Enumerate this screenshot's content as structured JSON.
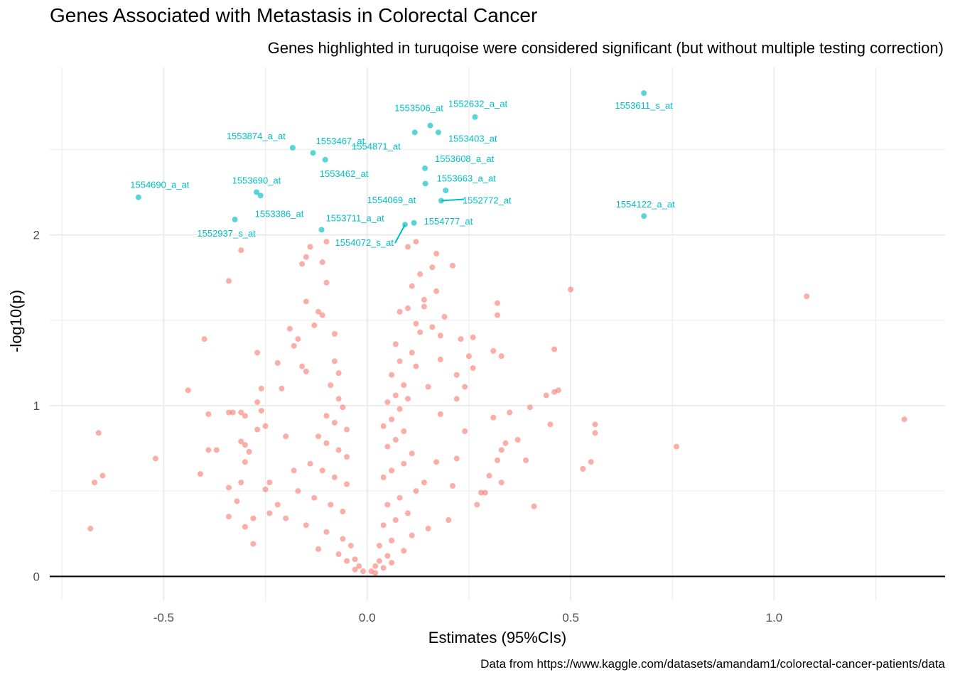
{
  "title": "Genes Associated with Metastasis in Colorectal Cancer",
  "subtitle": "Genes highlighted in turuqoise were considered significant (but without multiple testing correction)",
  "caption": "Data from https://www.kaggle.com/datasets/amandam1/colorectal-cancer-patients/data",
  "colors": {
    "significant": "#00BFC4",
    "nonsignificant": "#F8766D",
    "grid": "#ebebeb",
    "baseline": "#000000"
  },
  "chart_data": {
    "type": "scatter",
    "xlabel": "Estimates (95%CIs)",
    "ylabel": "-log10(p)",
    "xlim": [
      -0.78,
      1.42
    ],
    "ylim": [
      -0.14,
      2.98
    ],
    "x_ticks": [
      -0.5,
      0.0,
      0.5,
      1.0
    ],
    "x_tick_labels": [
      "-0.5",
      "0.0",
      "0.5",
      "1.0"
    ],
    "y_ticks": [
      0,
      1,
      2
    ],
    "y_tick_labels": [
      "0",
      "1",
      "2"
    ],
    "grid": true,
    "baseline_y": 0,
    "significant_points": [
      {
        "label": "1553611_s_at",
        "x": 0.68,
        "y": 2.83
      },
      {
        "label": "1552632_a_at",
        "x": 0.265,
        "y": 2.69
      },
      {
        "label": "1553506_at",
        "x": 0.155,
        "y": 2.64
      },
      {
        "label": "1553403_at",
        "x": 0.175,
        "y": 2.6
      },
      {
        "label": "1554871_at",
        "x": 0.117,
        "y": 2.6
      },
      {
        "label": "1553874_a_at",
        "x": -0.183,
        "y": 2.51
      },
      {
        "label": "1553467_at",
        "x": -0.133,
        "y": 2.48
      },
      {
        "label": "1553462_at",
        "x": -0.103,
        "y": 2.44
      },
      {
        "label": "1553608_a_at",
        "x": 0.142,
        "y": 2.39
      },
      {
        "label": "1553663_a_at",
        "x": 0.143,
        "y": 2.3
      },
      {
        "label": "1554690_a_at",
        "x": -0.562,
        "y": 2.22
      },
      {
        "label": "1553690_at",
        "x": -0.272,
        "y": 2.25
      },
      {
        "label": "1553386_at",
        "x": -0.262,
        "y": 2.23
      },
      {
        "label": "1554069_at",
        "x": 0.193,
        "y": 2.26
      },
      {
        "label": "1552772_at",
        "x": 0.182,
        "y": 2.2
      },
      {
        "label": "1554122_a_at",
        "x": 0.68,
        "y": 2.11
      },
      {
        "label": "1552937_s_at",
        "x": -0.325,
        "y": 2.09
      },
      {
        "label": "1553711_a_at",
        "x": -0.112,
        "y": 2.03
      },
      {
        "label": "1554777_at",
        "x": 0.115,
        "y": 2.07
      },
      {
        "label": "1554072_s_at",
        "x": 0.093,
        "y": 2.06
      }
    ],
    "nonsignificant_points": [
      [
        1.32,
        0.92
      ],
      [
        1.08,
        1.64
      ],
      [
        0.76,
        0.76
      ],
      [
        0.5,
        1.68
      ],
      [
        0.56,
        0.89
      ],
      [
        0.56,
        0.84
      ],
      [
        0.55,
        0.67
      ],
      [
        0.53,
        0.63
      ],
      [
        0.46,
        1.33
      ],
      [
        0.47,
        1.09
      ],
      [
        0.46,
        1.08
      ],
      [
        0.44,
        1.06
      ],
      [
        0.45,
        0.89
      ],
      [
        0.4,
        0.99
      ],
      [
        0.37,
        0.8
      ],
      [
        0.39,
        0.68
      ],
      [
        0.41,
        0.41
      ],
      [
        0.35,
        0.96
      ],
      [
        0.34,
        0.78
      ],
      [
        0.33,
        0.74
      ],
      [
        0.32,
        1.6
      ],
      [
        0.32,
        1.53
      ],
      [
        0.31,
        1.32
      ],
      [
        0.33,
        1.29
      ],
      [
        0.31,
        0.93
      ],
      [
        0.32,
        0.68
      ],
      [
        0.33,
        0.55
      ],
      [
        0.3,
        0.59
      ],
      [
        0.29,
        0.49
      ],
      [
        0.28,
        0.49
      ],
      [
        0.27,
        0.42
      ],
      [
        0.26,
        1.4
      ],
      [
        0.26,
        1.22
      ],
      [
        0.25,
        1.29
      ],
      [
        0.24,
        1.11
      ],
      [
        0.24,
        0.85
      ],
      [
        0.23,
        1.39
      ],
      [
        0.22,
        1.18
      ],
      [
        0.22,
        1.04
      ],
      [
        0.22,
        0.69
      ],
      [
        0.21,
        0.53
      ],
      [
        0.2,
        0.33
      ],
      [
        0.19,
        1.52
      ],
      [
        0.18,
        1.41
      ],
      [
        0.18,
        1.27
      ],
      [
        0.18,
        0.95
      ],
      [
        0.17,
        0.67
      ],
      [
        0.16,
        1.46
      ],
      [
        0.15,
        1.11
      ],
      [
        0.14,
        1.58
      ],
      [
        0.13,
        1.43
      ],
      [
        0.12,
        1.23
      ],
      [
        0.11,
        1.31
      ],
      [
        0.1,
        1.04
      ],
      [
        0.21,
        1.82
      ],
      [
        0.17,
        1.89
      ],
      [
        0.16,
        1.81
      ],
      [
        0.12,
        1.96
      ],
      [
        0.1,
        1.93
      ],
      [
        0.13,
        1.77
      ],
      [
        0.11,
        1.7
      ],
      [
        0.17,
        1.67
      ],
      [
        0.14,
        1.62
      ],
      [
        0.1,
        1.57
      ],
      [
        0.08,
        1.55
      ],
      [
        0.12,
        1.48
      ],
      [
        0.07,
        1.36
      ],
      [
        0.08,
        1.26
      ],
      [
        0.06,
        1.18
      ],
      [
        0.09,
        1.12
      ],
      [
        0.07,
        1.06
      ],
      [
        0.05,
        1.02
      ],
      [
        0.08,
        0.98
      ],
      [
        0.06,
        0.92
      ],
      [
        0.04,
        0.88
      ],
      [
        0.09,
        0.85
      ],
      [
        0.07,
        0.8
      ],
      [
        0.05,
        0.76
      ],
      [
        0.11,
        0.72
      ],
      [
        0.09,
        0.66
      ],
      [
        0.06,
        0.62
      ],
      [
        0.04,
        0.58
      ],
      [
        0.14,
        0.55
      ],
      [
        0.12,
        0.5
      ],
      [
        0.08,
        0.46
      ],
      [
        0.05,
        0.42
      ],
      [
        0.1,
        0.37
      ],
      [
        0.07,
        0.33
      ],
      [
        0.04,
        0.3
      ],
      [
        0.15,
        0.28
      ],
      [
        0.11,
        0.24
      ],
      [
        0.06,
        0.21
      ],
      [
        0.03,
        0.18
      ],
      [
        0.09,
        0.15
      ],
      [
        0.05,
        0.12
      ],
      [
        0.03,
        0.09
      ],
      [
        0.02,
        0.06
      ],
      [
        0.01,
        0.03
      ],
      [
        0.02,
        0.02
      ],
      [
        0.04,
        0.05
      ],
      [
        0.06,
        0.08
      ],
      [
        -0.68,
        0.28
      ],
      [
        -0.66,
        0.84
      ],
      [
        -0.67,
        0.55
      ],
      [
        -0.65,
        0.59
      ],
      [
        -0.52,
        0.69
      ],
      [
        -0.44,
        1.09
      ],
      [
        -0.4,
        1.39
      ],
      [
        -0.39,
        0.95
      ],
      [
        -0.39,
        0.74
      ],
      [
        -0.37,
        0.74
      ],
      [
        -0.41,
        0.6
      ],
      [
        -0.34,
        1.73
      ],
      [
        -0.31,
        1.91
      ],
      [
        -0.34,
        0.96
      ],
      [
        -0.33,
        0.96
      ],
      [
        -0.31,
        0.96
      ],
      [
        -0.3,
        0.94
      ],
      [
        -0.31,
        0.79
      ],
      [
        -0.3,
        0.77
      ],
      [
        -0.29,
        0.73
      ],
      [
        -0.3,
        0.67
      ],
      [
        -0.31,
        0.55
      ],
      [
        -0.34,
        0.52
      ],
      [
        -0.32,
        0.44
      ],
      [
        -0.34,
        0.35
      ],
      [
        -0.28,
        0.34
      ],
      [
        -0.28,
        0.19
      ],
      [
        -0.3,
        0.29
      ],
      [
        -0.27,
        1.31
      ],
      [
        -0.27,
        1.02
      ],
      [
        -0.26,
        1.1
      ],
      [
        -0.26,
        0.97
      ],
      [
        -0.25,
        0.88
      ],
      [
        -0.27,
        0.86
      ],
      [
        -0.25,
        0.51
      ],
      [
        -0.24,
        0.37
      ],
      [
        -0.22,
        1.25
      ],
      [
        -0.21,
        1.1
      ],
      [
        -0.2,
        0.82
      ],
      [
        -0.19,
        1.45
      ],
      [
        -0.18,
        1.35
      ],
      [
        -0.17,
        1.39
      ],
      [
        -0.16,
        1.23
      ],
      [
        -0.15,
        1.2
      ],
      [
        -0.13,
        1.47
      ],
      [
        -0.12,
        1.55
      ],
      [
        -0.11,
        1.53
      ],
      [
        -0.1,
        1.96
      ],
      [
        -0.14,
        1.93
      ],
      [
        -0.15,
        1.87
      ],
      [
        -0.16,
        1.83
      ],
      [
        -0.11,
        1.84
      ],
      [
        -0.1,
        1.72
      ],
      [
        -0.15,
        1.61
      ],
      [
        -0.08,
        1.42
      ],
      [
        -0.08,
        1.26
      ],
      [
        -0.07,
        1.19
      ],
      [
        -0.09,
        1.12
      ],
      [
        -0.07,
        1.04
      ],
      [
        -0.06,
        0.99
      ],
      [
        -0.1,
        0.94
      ],
      [
        -0.08,
        0.9
      ],
      [
        -0.05,
        0.86
      ],
      [
        -0.12,
        0.82
      ],
      [
        -0.1,
        0.78
      ],
      [
        -0.07,
        0.74
      ],
      [
        -0.05,
        0.7
      ],
      [
        -0.14,
        0.66
      ],
      [
        -0.11,
        0.62
      ],
      [
        -0.08,
        0.58
      ],
      [
        -0.05,
        0.54
      ],
      [
        -0.17,
        0.5
      ],
      [
        -0.13,
        0.46
      ],
      [
        -0.09,
        0.42
      ],
      [
        -0.06,
        0.38
      ],
      [
        -0.2,
        0.34
      ],
      [
        -0.15,
        0.3
      ],
      [
        -0.1,
        0.26
      ],
      [
        -0.06,
        0.22
      ],
      [
        -0.04,
        0.18
      ],
      [
        -0.12,
        0.16
      ],
      [
        -0.07,
        0.13
      ],
      [
        -0.03,
        0.1
      ],
      [
        -0.02,
        0.06
      ],
      [
        -0.01,
        0.03
      ],
      [
        -0.03,
        0.04
      ],
      [
        -0.05,
        0.09
      ],
      [
        -0.22,
        0.42
      ],
      [
        -0.18,
        0.62
      ],
      [
        -0.24,
        0.55
      ]
    ]
  }
}
